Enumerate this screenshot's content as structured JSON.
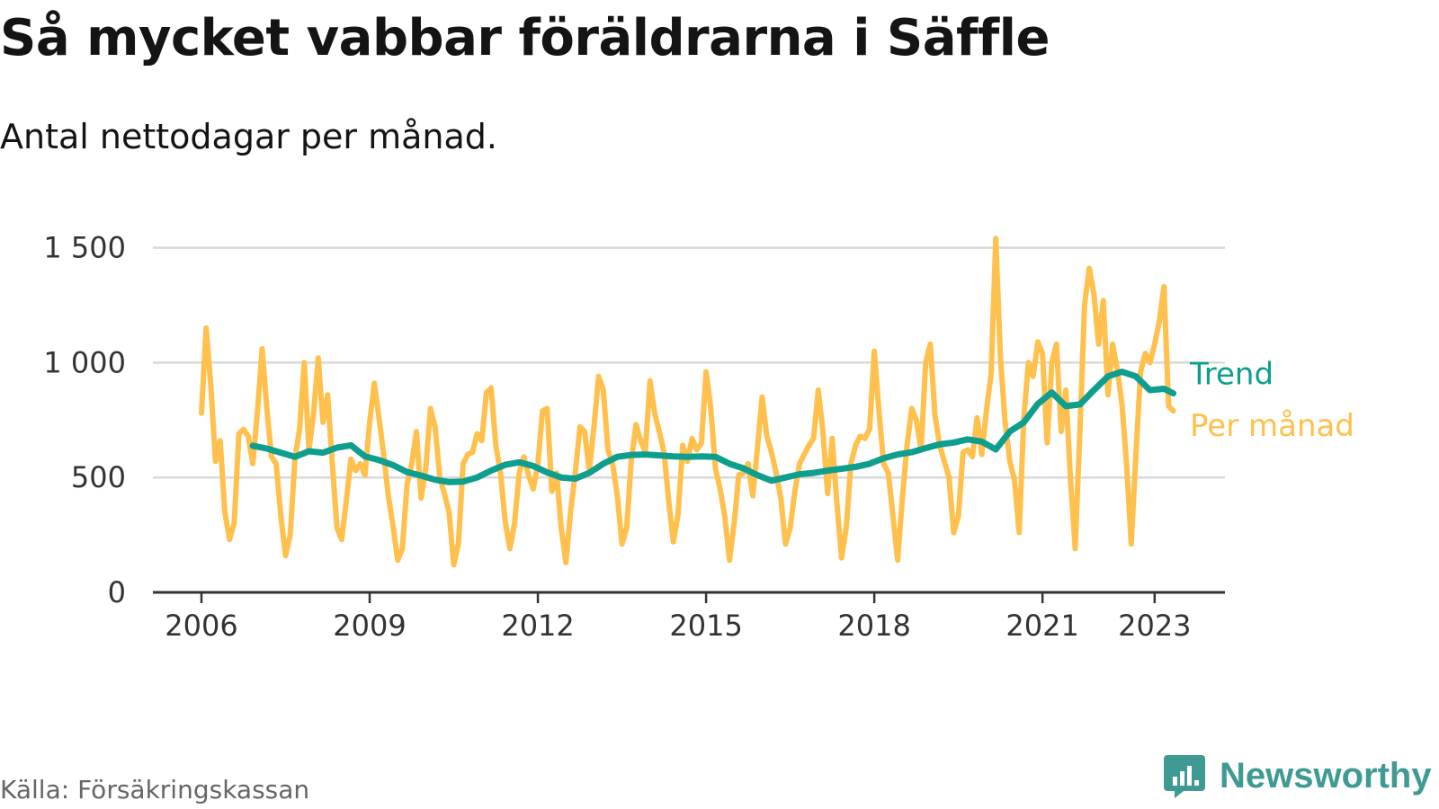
{
  "title": "Så mycket vabbar föräldrarna i Säffle",
  "subtitle": "Antal nettodagar per månad.",
  "source": "Källa: Försäkringskassan",
  "brand": {
    "name": "Newsworthy",
    "icon": "newsworthy-logo-icon",
    "color": "#3f9a94"
  },
  "chart_data": {
    "type": "line",
    "title": "Så mycket vabbar föräldrarna i Säffle",
    "subtitle": "Antal nettodagar per månad.",
    "xlabel": "",
    "ylabel": "",
    "x_ticks": [
      "2006",
      "2009",
      "2012",
      "2015",
      "2018",
      "2021",
      "2023"
    ],
    "y_ticks": [
      0,
      500,
      1000,
      1500
    ],
    "y_tick_labels": [
      "0",
      "500",
      "1 000",
      "1 500"
    ],
    "ylim": [
      0,
      1600
    ],
    "grid": "horizontal",
    "legend": "inline labels at line ends (right)",
    "series": [
      {
        "name": "Per månad",
        "color": "#ffc04d",
        "points": [
          [
            "2006-01",
            780
          ],
          [
            "2006-02",
            1150
          ],
          [
            "2006-03",
            900
          ],
          [
            "2006-04",
            570
          ],
          [
            "2006-05",
            660
          ],
          [
            "2006-06",
            350
          ],
          [
            "2006-07",
            230
          ],
          [
            "2006-08",
            300
          ],
          [
            "2006-09",
            690
          ],
          [
            "2006-10",
            710
          ],
          [
            "2006-11",
            680
          ],
          [
            "2006-12",
            560
          ],
          [
            "2007-01",
            790
          ],
          [
            "2007-02",
            1060
          ],
          [
            "2007-03",
            800
          ],
          [
            "2007-04",
            590
          ],
          [
            "2007-05",
            560
          ],
          [
            "2007-06",
            330
          ],
          [
            "2007-07",
            160
          ],
          [
            "2007-08",
            250
          ],
          [
            "2007-09",
            580
          ],
          [
            "2007-10",
            710
          ],
          [
            "2007-11",
            1000
          ],
          [
            "2007-12",
            620
          ],
          [
            "2008-01",
            780
          ],
          [
            "2008-02",
            1020
          ],
          [
            "2008-03",
            740
          ],
          [
            "2008-04",
            860
          ],
          [
            "2008-05",
            560
          ],
          [
            "2008-06",
            280
          ],
          [
            "2008-07",
            230
          ],
          [
            "2008-08",
            400
          ],
          [
            "2008-09",
            580
          ],
          [
            "2008-10",
            530
          ],
          [
            "2008-11",
            560
          ],
          [
            "2008-12",
            510
          ],
          [
            "2009-01",
            740
          ],
          [
            "2009-02",
            910
          ],
          [
            "2009-03",
            760
          ],
          [
            "2009-04",
            600
          ],
          [
            "2009-05",
            420
          ],
          [
            "2009-06",
            290
          ],
          [
            "2009-07",
            140
          ],
          [
            "2009-08",
            190
          ],
          [
            "2009-09",
            470
          ],
          [
            "2009-10",
            560
          ],
          [
            "2009-11",
            700
          ],
          [
            "2009-12",
            410
          ],
          [
            "2010-01",
            540
          ],
          [
            "2010-02",
            800
          ],
          [
            "2010-03",
            720
          ],
          [
            "2010-04",
            500
          ],
          [
            "2010-05",
            430
          ],
          [
            "2010-06",
            350
          ],
          [
            "2010-07",
            120
          ],
          [
            "2010-08",
            210
          ],
          [
            "2010-09",
            560
          ],
          [
            "2010-10",
            600
          ],
          [
            "2010-11",
            610
          ],
          [
            "2010-12",
            690
          ],
          [
            "2011-01",
            660
          ],
          [
            "2011-02",
            870
          ],
          [
            "2011-03",
            890
          ],
          [
            "2011-04",
            640
          ],
          [
            "2011-05",
            520
          ],
          [
            "2011-06",
            310
          ],
          [
            "2011-07",
            190
          ],
          [
            "2011-08",
            300
          ],
          [
            "2011-09",
            520
          ],
          [
            "2011-10",
            590
          ],
          [
            "2011-11",
            510
          ],
          [
            "2011-12",
            450
          ],
          [
            "2012-01",
            560
          ],
          [
            "2012-02",
            790
          ],
          [
            "2012-03",
            800
          ],
          [
            "2012-04",
            440
          ],
          [
            "2012-05",
            520
          ],
          [
            "2012-06",
            280
          ],
          [
            "2012-07",
            130
          ],
          [
            "2012-08",
            350
          ],
          [
            "2012-09",
            520
          ],
          [
            "2012-10",
            720
          ],
          [
            "2012-11",
            700
          ],
          [
            "2012-12",
            530
          ],
          [
            "2013-01",
            720
          ],
          [
            "2013-02",
            940
          ],
          [
            "2013-03",
            880
          ],
          [
            "2013-04",
            620
          ],
          [
            "2013-05",
            560
          ],
          [
            "2013-06",
            420
          ],
          [
            "2013-07",
            210
          ],
          [
            "2013-08",
            280
          ],
          [
            "2013-09",
            580
          ],
          [
            "2013-10",
            730
          ],
          [
            "2013-11",
            660
          ],
          [
            "2013-12",
            610
          ],
          [
            "2014-01",
            920
          ],
          [
            "2014-02",
            780
          ],
          [
            "2014-03",
            700
          ],
          [
            "2014-04",
            610
          ],
          [
            "2014-05",
            400
          ],
          [
            "2014-06",
            220
          ],
          [
            "2014-07",
            340
          ],
          [
            "2014-08",
            640
          ],
          [
            "2014-09",
            570
          ],
          [
            "2014-10",
            670
          ],
          [
            "2014-11",
            620
          ],
          [
            "2014-12",
            650
          ],
          [
            "2015-01",
            960
          ],
          [
            "2015-02",
            800
          ],
          [
            "2015-03",
            540
          ],
          [
            "2015-04",
            450
          ],
          [
            "2015-05",
            330
          ],
          [
            "2015-06",
            140
          ],
          [
            "2015-07",
            300
          ],
          [
            "2015-08",
            510
          ],
          [
            "2015-09",
            520
          ],
          [
            "2015-10",
            560
          ],
          [
            "2015-11",
            420
          ],
          [
            "2015-12",
            630
          ],
          [
            "2016-01",
            850
          ],
          [
            "2016-02",
            680
          ],
          [
            "2016-03",
            610
          ],
          [
            "2016-04",
            520
          ],
          [
            "2016-05",
            410
          ],
          [
            "2016-06",
            210
          ],
          [
            "2016-07",
            280
          ],
          [
            "2016-08",
            440
          ],
          [
            "2016-09",
            560
          ],
          [
            "2016-10",
            600
          ],
          [
            "2016-11",
            640
          ],
          [
            "2016-12",
            670
          ],
          [
            "2017-01",
            880
          ],
          [
            "2017-02",
            700
          ],
          [
            "2017-03",
            430
          ],
          [
            "2017-04",
            670
          ],
          [
            "2017-05",
            390
          ],
          [
            "2017-06",
            150
          ],
          [
            "2017-07",
            280
          ],
          [
            "2017-08",
            560
          ],
          [
            "2017-09",
            640
          ],
          [
            "2017-10",
            680
          ],
          [
            "2017-11",
            670
          ],
          [
            "2017-12",
            710
          ],
          [
            "2018-01",
            1050
          ],
          [
            "2018-02",
            790
          ],
          [
            "2018-03",
            560
          ],
          [
            "2018-04",
            520
          ],
          [
            "2018-05",
            330
          ],
          [
            "2018-06",
            140
          ],
          [
            "2018-07",
            410
          ],
          [
            "2018-08",
            640
          ],
          [
            "2018-09",
            800
          ],
          [
            "2018-10",
            750
          ],
          [
            "2018-11",
            620
          ],
          [
            "2018-12",
            1000
          ],
          [
            "2019-01",
            1080
          ],
          [
            "2019-02",
            770
          ],
          [
            "2019-03",
            640
          ],
          [
            "2019-04",
            570
          ],
          [
            "2019-05",
            500
          ],
          [
            "2019-06",
            260
          ],
          [
            "2019-07",
            330
          ],
          [
            "2019-08",
            610
          ],
          [
            "2019-09",
            620
          ],
          [
            "2019-10",
            590
          ],
          [
            "2019-11",
            760
          ],
          [
            "2019-12",
            600
          ],
          [
            "2020-01",
            790
          ],
          [
            "2020-02",
            950
          ],
          [
            "2020-03",
            1540
          ],
          [
            "2020-04",
            1020
          ],
          [
            "2020-05",
            740
          ],
          [
            "2020-06",
            570
          ],
          [
            "2020-07",
            490
          ],
          [
            "2020-08",
            260
          ],
          [
            "2020-09",
            760
          ],
          [
            "2020-10",
            1000
          ],
          [
            "2020-11",
            940
          ],
          [
            "2020-12",
            1090
          ],
          [
            "2021-01",
            1040
          ],
          [
            "2021-02",
            650
          ],
          [
            "2021-03",
            1000
          ],
          [
            "2021-04",
            1080
          ],
          [
            "2021-05",
            700
          ],
          [
            "2021-06",
            880
          ],
          [
            "2021-07",
            490
          ],
          [
            "2021-08",
            190
          ],
          [
            "2021-09",
            700
          ],
          [
            "2021-10",
            1250
          ],
          [
            "2021-11",
            1410
          ],
          [
            "2021-12",
            1300
          ],
          [
            "2022-01",
            1080
          ],
          [
            "2022-02",
            1270
          ],
          [
            "2022-03",
            860
          ],
          [
            "2022-04",
            1080
          ],
          [
            "2022-05",
            970
          ],
          [
            "2022-06",
            820
          ],
          [
            "2022-07",
            560
          ],
          [
            "2022-08",
            210
          ],
          [
            "2022-09",
            600
          ],
          [
            "2022-10",
            960
          ],
          [
            "2022-11",
            1040
          ],
          [
            "2022-12",
            1000
          ],
          [
            "2023-01",
            1080
          ],
          [
            "2023-02",
            1180
          ],
          [
            "2023-03",
            1330
          ],
          [
            "2023-04",
            810
          ],
          [
            "2023-05",
            790
          ]
        ]
      },
      {
        "name": "Trend",
        "color": "#0e9e8e",
        "points": [
          [
            "2006-12",
            638
          ],
          [
            "2007-03",
            626
          ],
          [
            "2007-06",
            608
          ],
          [
            "2007-09",
            590
          ],
          [
            "2007-12",
            614
          ],
          [
            "2008-03",
            608
          ],
          [
            "2008-06",
            630
          ],
          [
            "2008-09",
            640
          ],
          [
            "2008-12",
            592
          ],
          [
            "2009-03",
            576
          ],
          [
            "2009-06",
            554
          ],
          [
            "2009-09",
            524
          ],
          [
            "2009-12",
            508
          ],
          [
            "2010-03",
            490
          ],
          [
            "2010-06",
            480
          ],
          [
            "2010-09",
            482
          ],
          [
            "2010-12",
            500
          ],
          [
            "2011-03",
            530
          ],
          [
            "2011-06",
            555
          ],
          [
            "2011-09",
            566
          ],
          [
            "2011-12",
            550
          ],
          [
            "2012-03",
            522
          ],
          [
            "2012-06",
            500
          ],
          [
            "2012-09",
            495
          ],
          [
            "2012-12",
            520
          ],
          [
            "2013-03",
            560
          ],
          [
            "2013-06",
            590
          ],
          [
            "2013-09",
            598
          ],
          [
            "2013-12",
            600
          ],
          [
            "2014-03",
            596
          ],
          [
            "2014-06",
            592
          ],
          [
            "2014-09",
            590
          ],
          [
            "2014-12",
            592
          ],
          [
            "2015-03",
            590
          ],
          [
            "2015-06",
            560
          ],
          [
            "2015-09",
            540
          ],
          [
            "2015-12",
            510
          ],
          [
            "2016-03",
            486
          ],
          [
            "2016-06",
            500
          ],
          [
            "2016-09",
            514
          ],
          [
            "2016-12",
            520
          ],
          [
            "2017-03",
            530
          ],
          [
            "2017-06",
            538
          ],
          [
            "2017-09",
            546
          ],
          [
            "2017-12",
            560
          ],
          [
            "2018-03",
            584
          ],
          [
            "2018-06",
            600
          ],
          [
            "2018-09",
            610
          ],
          [
            "2018-12",
            628
          ],
          [
            "2019-03",
            644
          ],
          [
            "2019-06",
            652
          ],
          [
            "2019-09",
            666
          ],
          [
            "2019-12",
            656
          ],
          [
            "2020-03",
            622
          ],
          [
            "2020-06",
            700
          ],
          [
            "2020-09",
            740
          ],
          [
            "2020-12",
            820
          ],
          [
            "2021-03",
            870
          ],
          [
            "2021-06",
            810
          ],
          [
            "2021-09",
            818
          ],
          [
            "2021-12",
            880
          ],
          [
            "2022-03",
            940
          ],
          [
            "2022-06",
            960
          ],
          [
            "2022-09",
            940
          ],
          [
            "2022-12",
            880
          ],
          [
            "2023-03",
            886
          ],
          [
            "2023-05",
            866
          ]
        ]
      }
    ]
  }
}
